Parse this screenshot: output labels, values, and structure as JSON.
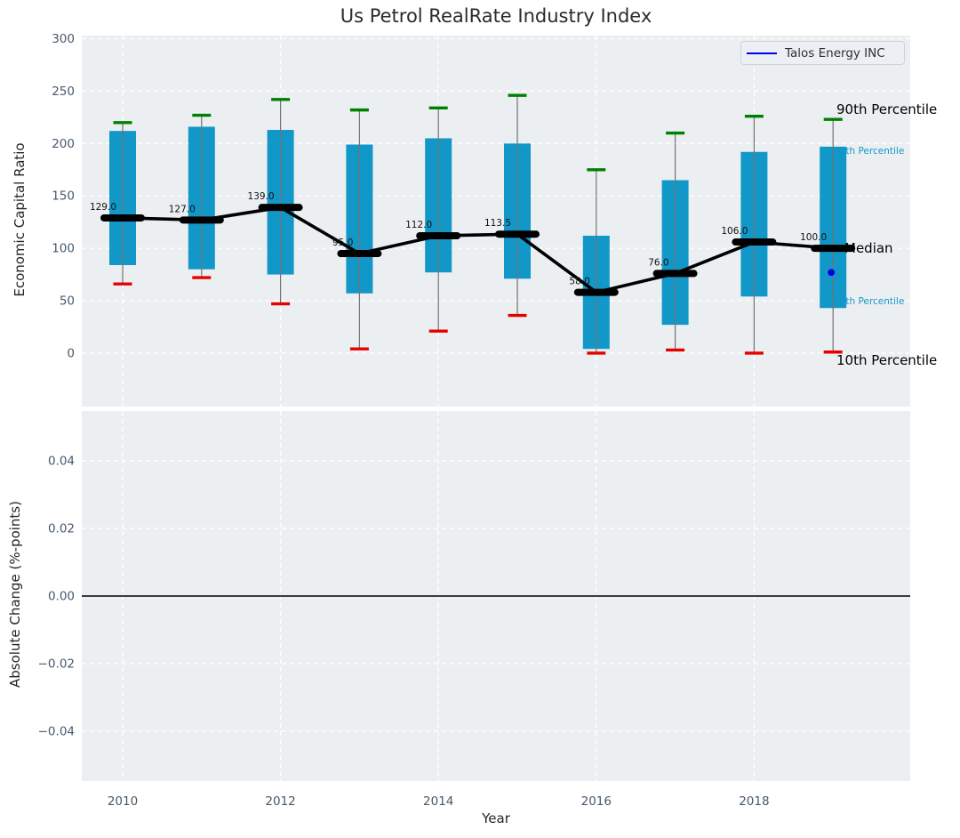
{
  "figure": {
    "title": "Us Petrol RealRate Industry Index"
  },
  "legend": {
    "label": "Talos Energy INC"
  },
  "side_labels": {
    "p90": "90th Percentile",
    "p75": "75th Percentile",
    "median": "Median",
    "p25": "25th Percentile",
    "p10": "10th Percentile"
  },
  "colors": {
    "box": "#1297c9",
    "p90_cap": "#008000",
    "p10_cap": "#e80000",
    "median": "#000000",
    "whisker": "#737373",
    "company_point": "#0000dd",
    "legend_line": "#0000ee",
    "plot_bg": "#eceff1",
    "grid": "#ffffff",
    "tick_text": "#46586b",
    "axis_text": "#262626",
    "cyan_text": "#1297c9",
    "zero_line": "#000000"
  },
  "chart_data": [
    {
      "type": "boxplot",
      "title": "Us Petrol RealRate Industry Index",
      "ylabel": "Economic Capital Ratio",
      "ylim": [
        -51,
        303
      ],
      "yticks": [
        0,
        50,
        100,
        150,
        200,
        250,
        300
      ],
      "ytick_labels": [
        "0",
        "50",
        "100",
        "150",
        "200",
        "250",
        "300"
      ],
      "categories": [
        2010,
        2011,
        2012,
        2013,
        2014,
        2015,
        2016,
        2017,
        2018,
        2019
      ],
      "series": [
        {
          "name": "10th Percentile",
          "values": [
            66,
            72,
            47,
            4,
            21,
            36,
            0,
            3,
            0,
            1
          ]
        },
        {
          "name": "25th Percentile",
          "values": [
            84,
            80,
            75,
            57,
            77,
            71,
            4,
            27,
            54,
            43
          ]
        },
        {
          "name": "Median",
          "values": [
            129,
            127,
            139,
            95,
            112,
            113.5,
            58,
            76,
            106,
            100
          ]
        },
        {
          "name": "75th Percentile",
          "values": [
            212,
            216,
            213,
            199,
            205,
            200,
            112,
            165,
            192,
            197
          ]
        },
        {
          "name": "90th Percentile",
          "values": [
            220,
            227,
            242,
            232,
            234,
            246,
            175,
            210,
            226,
            223
          ]
        }
      ],
      "median_labels": [
        "129.0",
        "127.0",
        "139.0",
        "95.0",
        "112.0",
        "113.5",
        "58.0",
        "76.0",
        "106.0",
        "100.0"
      ],
      "company_point": {
        "label": "Talos Energy INC",
        "x": 2019,
        "y": 77
      },
      "xticks": [
        2010,
        2012,
        2014,
        2016,
        2018
      ],
      "xtick_labels": [
        "2010",
        "2012",
        "2014",
        "2016",
        "2018"
      ],
      "legend_position": "upper right",
      "grid": true
    },
    {
      "type": "line",
      "ylabel": "Absolute Change (%-points)",
      "xlabel": "Year",
      "ylim": [
        -0.0547,
        0.0547
      ],
      "yticks": [
        0.04,
        0.02,
        0,
        -0.02,
        -0.04
      ],
      "ytick_labels": [
        "0.04",
        "0.02",
        "0.00",
        "−0.02",
        "−0.04"
      ],
      "xticks": [
        2010,
        2012,
        2014,
        2016,
        2018
      ],
      "xtick_labels": [
        "2010",
        "2012",
        "2014",
        "2016",
        "2018"
      ],
      "zero_line": 0,
      "series": [],
      "grid": true
    }
  ]
}
